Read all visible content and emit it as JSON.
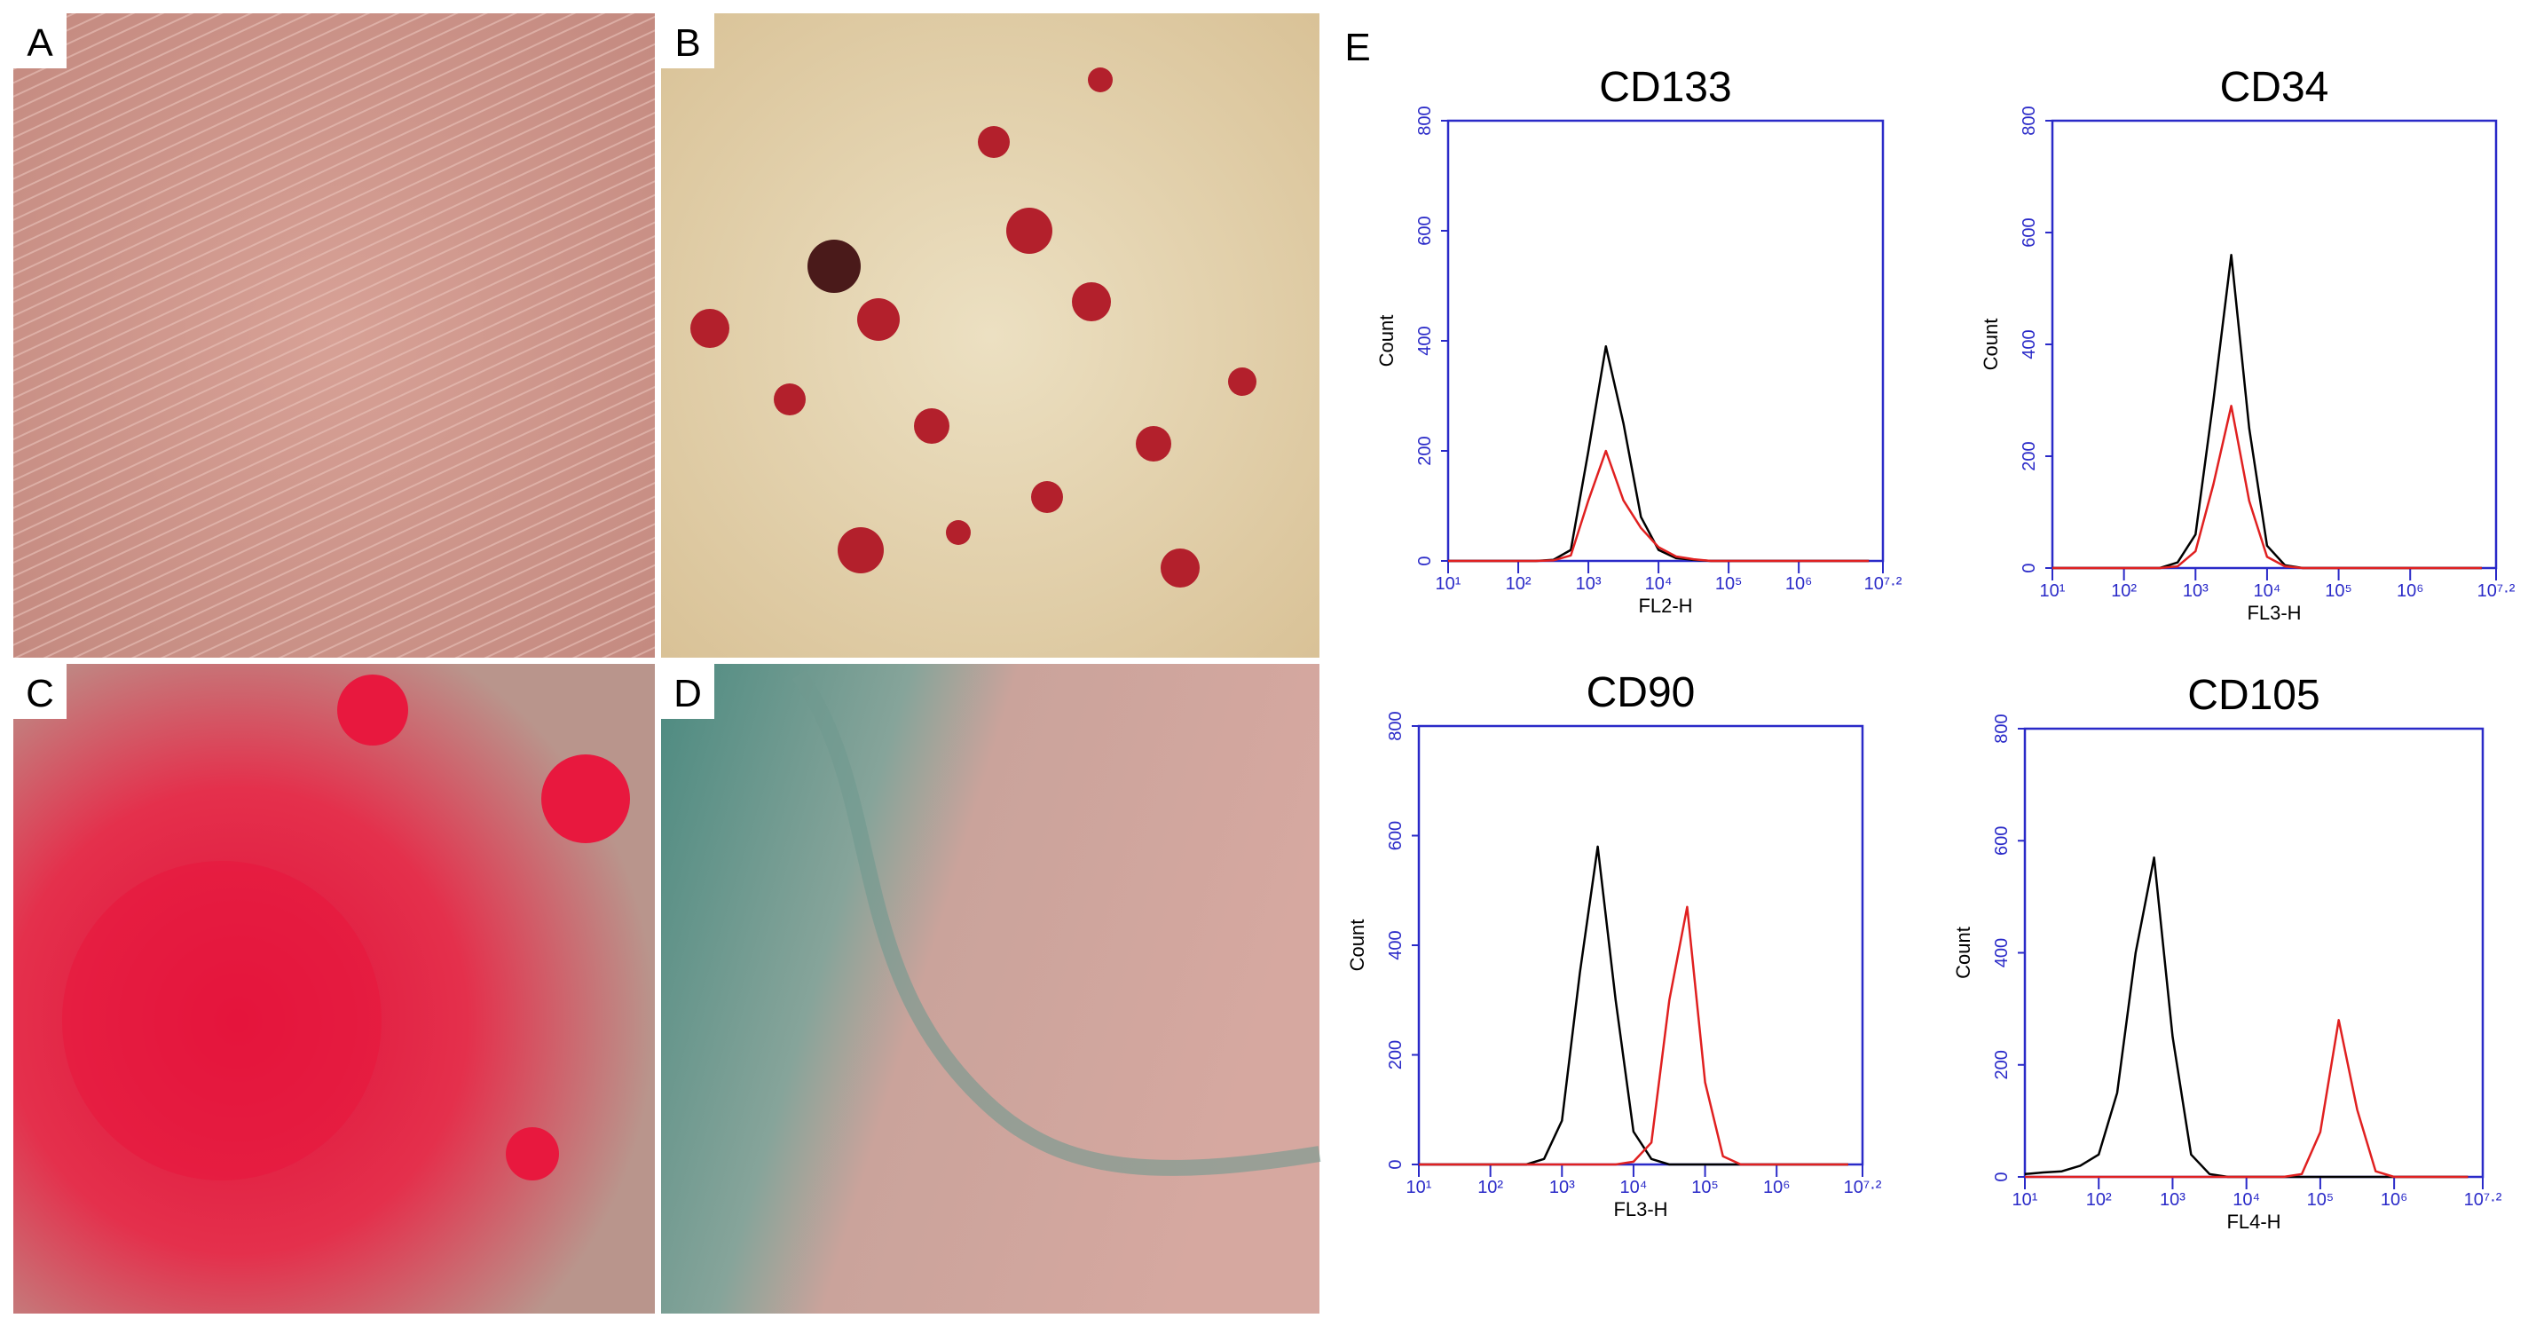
{
  "panel_labels": [
    "A",
    "B",
    "C",
    "D",
    "E"
  ],
  "chart_data": [
    {
      "type": "line",
      "title": "CD133",
      "x_label": "FL2-H",
      "y_label": "Count",
      "x": [
        1,
        1.25,
        1.5,
        1.75,
        2,
        2.25,
        2.5,
        2.75,
        3,
        3.25,
        3.5,
        3.75,
        4,
        4.25,
        4.5,
        4.75,
        5,
        5.25,
        5.5,
        5.75,
        6,
        6.25,
        6.5,
        6.75,
        7
      ],
      "series": [
        {
          "color": "#000000",
          "values": [
            0,
            0,
            0,
            0,
            0,
            0,
            2,
            20,
            200,
            390,
            250,
            80,
            20,
            5,
            2,
            0,
            0,
            0,
            0,
            0,
            0,
            0,
            0,
            0,
            0
          ]
        },
        {
          "color": "#e02020",
          "values": [
            0,
            0,
            0,
            0,
            0,
            0,
            1,
            10,
            110,
            200,
            110,
            60,
            25,
            8,
            3,
            0,
            0,
            0,
            0,
            0,
            0,
            0,
            0,
            0,
            0
          ]
        }
      ],
      "xlim": [
        1,
        7.2
      ],
      "ylim": [
        0,
        800
      ],
      "xticks": [
        {
          "value": 1,
          "label": "10¹"
        },
        {
          "value": 2,
          "label": "10²"
        },
        {
          "value": 3,
          "label": "10³"
        },
        {
          "value": 4,
          "label": "10⁴"
        },
        {
          "value": 5,
          "label": "10⁵"
        },
        {
          "value": 6,
          "label": "10⁶"
        },
        {
          "value": 7.2,
          "label": "10⁷·²"
        }
      ],
      "yticks": [
        0,
        200,
        400,
        600,
        800
      ],
      "x_scale": "log",
      "axis_color": "#2a2ac8"
    },
    {
      "type": "line",
      "title": "CD34",
      "x_label": "FL3-H",
      "y_label": "Count",
      "x": [
        1,
        1.25,
        1.5,
        1.75,
        2,
        2.25,
        2.5,
        2.75,
        3,
        3.25,
        3.5,
        3.75,
        4,
        4.25,
        4.5,
        4.75,
        5,
        5.25,
        5.5,
        5.75,
        6,
        6.25,
        6.5,
        6.75,
        7
      ],
      "series": [
        {
          "color": "#000000",
          "values": [
            0,
            0,
            0,
            0,
            0,
            0,
            0,
            10,
            60,
            300,
            560,
            250,
            40,
            5,
            0,
            0,
            0,
            0,
            0,
            0,
            0,
            0,
            0,
            0,
            0
          ]
        },
        {
          "color": "#e02020",
          "values": [
            0,
            0,
            0,
            0,
            0,
            0,
            0,
            3,
            30,
            150,
            290,
            120,
            20,
            3,
            0,
            0,
            0,
            0,
            0,
            0,
            0,
            0,
            0,
            0,
            0
          ]
        }
      ],
      "xlim": [
        1,
        7.2
      ],
      "ylim": [
        0,
        800
      ],
      "xticks": [
        {
          "value": 1,
          "label": "10¹"
        },
        {
          "value": 2,
          "label": "10²"
        },
        {
          "value": 3,
          "label": "10³"
        },
        {
          "value": 4,
          "label": "10⁴"
        },
        {
          "value": 5,
          "label": "10⁵"
        },
        {
          "value": 6,
          "label": "10⁶"
        },
        {
          "value": 7.2,
          "label": "10⁷·²"
        }
      ],
      "yticks": [
        0,
        200,
        400,
        600,
        800
      ],
      "x_scale": "log",
      "axis_color": "#2a2ac8"
    },
    {
      "type": "line",
      "title": "CD90",
      "x_label": "FL3-H",
      "y_label": "Count",
      "x": [
        1,
        1.25,
        1.5,
        1.75,
        2,
        2.25,
        2.5,
        2.75,
        3,
        3.25,
        3.5,
        3.75,
        4,
        4.25,
        4.5,
        4.75,
        5,
        5.25,
        5.5,
        5.75,
        6,
        6.25,
        6.5,
        6.75,
        7
      ],
      "series": [
        {
          "color": "#000000",
          "values": [
            0,
            0,
            0,
            0,
            0,
            0,
            0,
            10,
            80,
            350,
            580,
            300,
            60,
            10,
            0,
            0,
            0,
            0,
            0,
            0,
            0,
            0,
            0,
            0,
            0
          ]
        },
        {
          "color": "#e02020",
          "values": [
            0,
            0,
            0,
            0,
            0,
            0,
            0,
            0,
            0,
            0,
            0,
            0,
            5,
            40,
            300,
            470,
            150,
            15,
            0,
            0,
            0,
            0,
            0,
            0,
            0
          ]
        }
      ],
      "xlim": [
        1,
        7.2
      ],
      "ylim": [
        0,
        800
      ],
      "xticks": [
        {
          "value": 1,
          "label": "10¹"
        },
        {
          "value": 2,
          "label": "10²"
        },
        {
          "value": 3,
          "label": "10³"
        },
        {
          "value": 4,
          "label": "10⁴"
        },
        {
          "value": 5,
          "label": "10⁵"
        },
        {
          "value": 6,
          "label": "10⁶"
        },
        {
          "value": 7.2,
          "label": "10⁷·²"
        }
      ],
      "yticks": [
        0,
        200,
        400,
        600,
        800
      ],
      "x_scale": "log",
      "axis_color": "#2a2ac8"
    },
    {
      "type": "line",
      "title": "CD105",
      "x_label": "FL4-H",
      "y_label": "Count",
      "x": [
        1,
        1.25,
        1.5,
        1.75,
        2,
        2.25,
        2.5,
        2.75,
        3,
        3.25,
        3.5,
        3.75,
        4,
        4.25,
        4.5,
        4.75,
        5,
        5.25,
        5.5,
        5.75,
        6,
        6.25,
        6.5,
        6.75,
        7
      ],
      "series": [
        {
          "color": "#000000",
          "values": [
            5,
            8,
            10,
            20,
            40,
            150,
            400,
            570,
            250,
            40,
            5,
            0,
            0,
            0,
            0,
            0,
            0,
            0,
            0,
            0,
            0,
            0,
            0,
            0,
            0
          ]
        },
        {
          "color": "#e02020",
          "values": [
            0,
            0,
            0,
            0,
            0,
            0,
            0,
            0,
            0,
            0,
            0,
            0,
            0,
            0,
            0,
            5,
            80,
            280,
            120,
            10,
            0,
            0,
            0,
            0,
            0
          ]
        }
      ],
      "xlim": [
        1,
        7.2
      ],
      "ylim": [
        0,
        800
      ],
      "xticks": [
        {
          "value": 1,
          "label": "10¹"
        },
        {
          "value": 2,
          "label": "10²"
        },
        {
          "value": 3,
          "label": "10³"
        },
        {
          "value": 4,
          "label": "10⁴"
        },
        {
          "value": 5,
          "label": "10⁵"
        },
        {
          "value": 6,
          "label": "10⁶"
        },
        {
          "value": 7.2,
          "label": "10⁷·²"
        }
      ],
      "yticks": [
        0,
        200,
        400,
        600,
        800
      ],
      "x_scale": "log",
      "axis_color": "#2a2ac8"
    }
  ]
}
